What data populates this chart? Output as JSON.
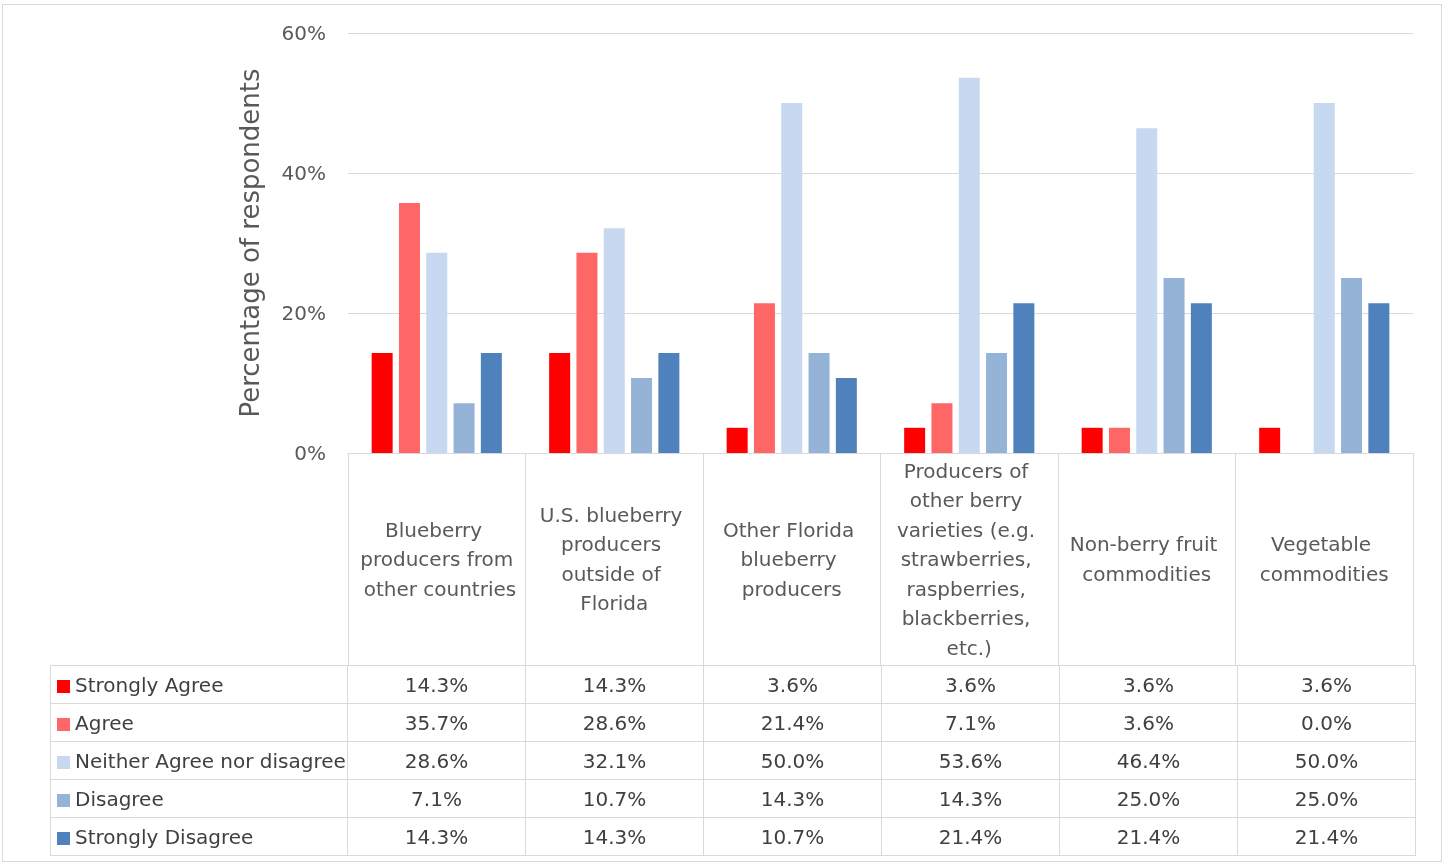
{
  "chart_data": {
    "type": "bar",
    "ylabel": "Percentage of respondents",
    "categories": [
      "Blueberry producers from other countries",
      "U.S. blueberry producers outside of Florida",
      "Other Florida blueberry producers",
      "Producers of other berry varieties (e.g. strawberries, raspberries, blackberries, etc.)",
      "Non-berry fruit commodities",
      "Vegetable commodities"
    ],
    "series": [
      {
        "name": "Strongly Agree",
        "color": "#ff0000",
        "values": [
          14.3,
          14.3,
          3.6,
          3.6,
          3.6,
          3.6
        ],
        "value_labels": [
          "14.3%",
          "14.3%",
          "3.6%",
          "3.6%",
          "3.6%",
          "3.6%"
        ]
      },
      {
        "name": "Agree",
        "color": "#ff6666",
        "values": [
          35.7,
          28.6,
          21.4,
          7.1,
          3.6,
          0.0
        ],
        "value_labels": [
          "35.7%",
          "28.6%",
          "21.4%",
          "7.1%",
          "3.6%",
          "0.0%"
        ]
      },
      {
        "name": "Neither Agree nor disagree",
        "color": "#c6d9f1",
        "values": [
          28.6,
          32.1,
          50.0,
          53.6,
          46.4,
          50.0
        ],
        "value_labels": [
          "28.6%",
          "32.1%",
          "50.0%",
          "53.6%",
          "46.4%",
          "50.0%"
        ]
      },
      {
        "name": "Disagree",
        "color": "#95b3d7",
        "values": [
          7.1,
          10.7,
          14.3,
          14.3,
          25.0,
          25.0
        ],
        "value_labels": [
          "7.1%",
          "10.7%",
          "14.3%",
          "14.3%",
          "25.0%",
          "25.0%"
        ]
      },
      {
        "name": "Strongly Disagree",
        "color": "#4f81bd",
        "values": [
          14.3,
          14.3,
          10.7,
          21.4,
          21.4,
          21.4
        ],
        "value_labels": [
          "14.3%",
          "14.3%",
          "10.7%",
          "21.4%",
          "21.4%",
          "21.4%"
        ]
      }
    ],
    "ylim": [
      0,
      60
    ],
    "yticks": [
      {
        "value": 0,
        "label": "0%"
      },
      {
        "value": 20,
        "label": "20%"
      },
      {
        "value": 40,
        "label": "40%"
      },
      {
        "value": 60,
        "label": "60%"
      }
    ],
    "grid": "y",
    "legend": "bottom"
  }
}
